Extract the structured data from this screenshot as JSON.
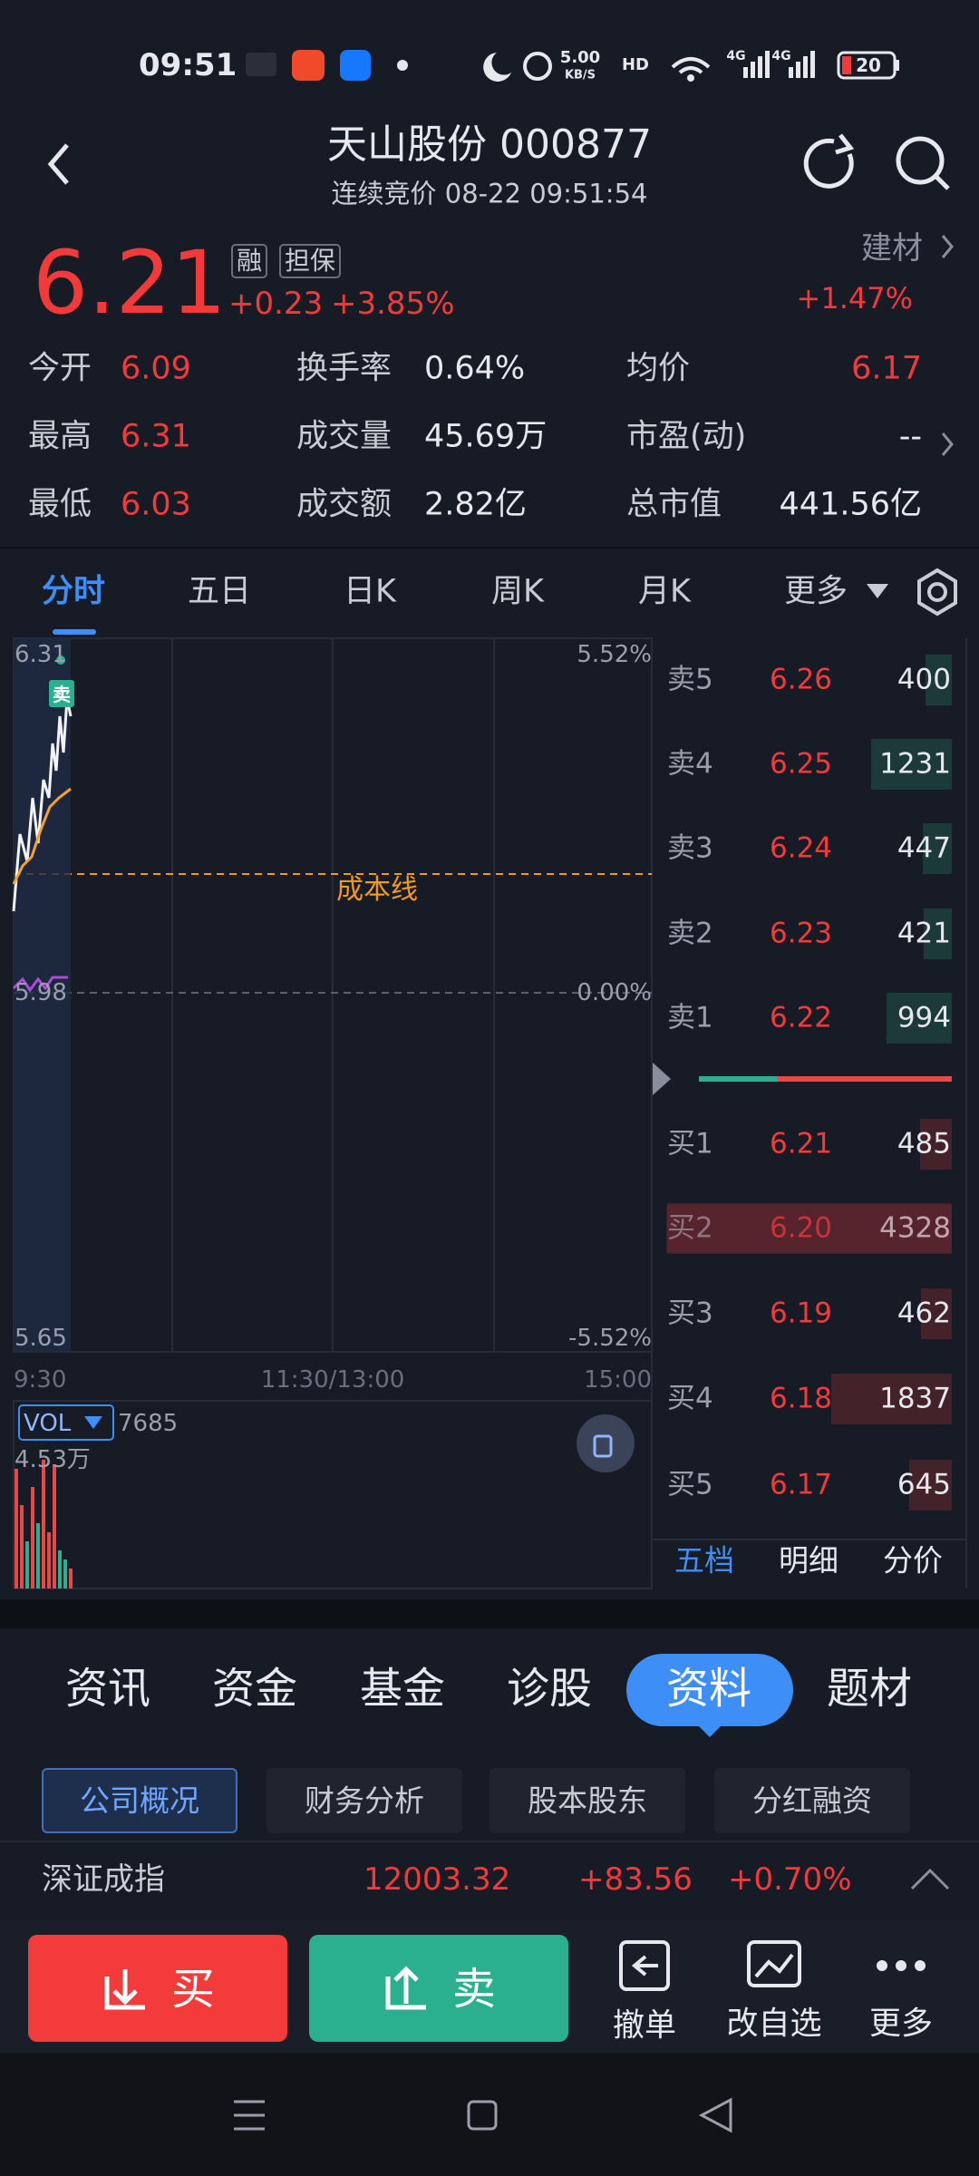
{
  "status_bar": {
    "time": "09:51",
    "net_speed": "5.00",
    "net_unit": "KB/S",
    "hd": "HD",
    "signal1": "4G",
    "signal2": "4G",
    "battery": "20"
  },
  "header": {
    "title": "天山股份 000877",
    "subtitle": "连续竞价 08-22 09:51:54"
  },
  "quote": {
    "price": "6.21",
    "tags": [
      "融",
      "担保"
    ],
    "change": "+0.23",
    "change_pct": "+3.85%",
    "sector": "建材",
    "sector_change": "+1.47%"
  },
  "stats": [
    [
      {
        "label": "今开",
        "value": "6.09"
      },
      {
        "label": "换手率",
        "value": "0.64%"
      },
      {
        "label": "均价",
        "value": "6.17"
      }
    ],
    [
      {
        "label": "最高",
        "value": "6.31"
      },
      {
        "label": "成交量",
        "value": "45.69万"
      },
      {
        "label": "市盈(动)",
        "value": "--"
      }
    ],
    [
      {
        "label": "最低",
        "value": "6.03"
      },
      {
        "label": "成交额",
        "value": "2.82亿"
      },
      {
        "label": "总市值",
        "value": "441.56亿"
      }
    ]
  ],
  "chart_tabs": [
    "分时",
    "五日",
    "日K",
    "周K",
    "月K",
    "更多"
  ],
  "chart": {
    "price_labels": [
      "6.31",
      "5.98",
      "5.65"
    ],
    "pct_labels": [
      "5.52%",
      "0.00%",
      "-5.52%"
    ],
    "time_labels": [
      "9:30",
      "11:30/13:00",
      "15:00"
    ],
    "cost_line": "成本线",
    "signal": "卖",
    "vol_label": "VOL",
    "vol_value": "7685",
    "vol_max": "4.53万"
  },
  "order_book": {
    "asks": [
      {
        "label": "卖5",
        "price": "6.26",
        "volume": 400
      },
      {
        "label": "卖4",
        "price": "6.25",
        "volume": 1231
      },
      {
        "label": "卖3",
        "price": "6.24",
        "volume": 447
      },
      {
        "label": "卖2",
        "price": "6.23",
        "volume": 421
      },
      {
        "label": "卖1",
        "price": "6.22",
        "volume": 994
      }
    ],
    "bids": [
      {
        "label": "买1",
        "price": "6.21",
        "volume": 485
      },
      {
        "label": "买2",
        "price": "6.20",
        "volume": 4328
      },
      {
        "label": "买3",
        "price": "6.19",
        "volume": 462
      },
      {
        "label": "买4",
        "price": "6.18",
        "volume": 1837
      },
      {
        "label": "买5",
        "price": "6.17",
        "volume": 645
      }
    ],
    "tabs": [
      "五档",
      "明细",
      "分价"
    ]
  },
  "section_tabs": [
    "资讯",
    "资金",
    "基金",
    "诊股",
    "资料",
    "题材"
  ],
  "sub_tabs": [
    "公司概况",
    "财务分析",
    "股本股东",
    "分红融资"
  ],
  "index_bar": {
    "name": "深证成指",
    "value": "12003.32",
    "change": "+83.56",
    "change_pct": "+0.70%"
  },
  "actions": {
    "buy": "买",
    "sell": "卖",
    "cancel": "撤单",
    "watchlist": "改自选",
    "more": "更多"
  }
}
